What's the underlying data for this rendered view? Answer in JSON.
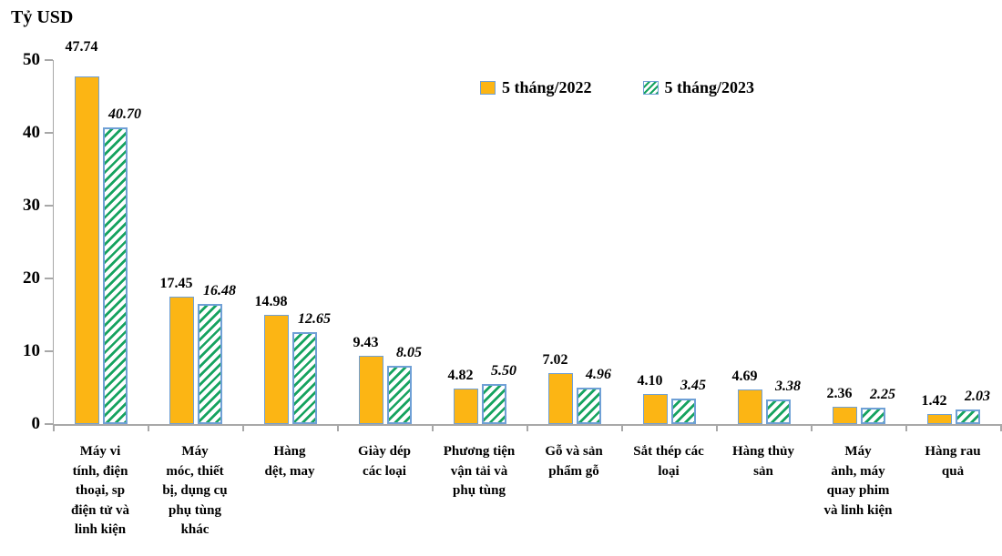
{
  "chart_data": {
    "type": "bar",
    "title": "",
    "ylabel": "Tỷ USD",
    "xlabel": "",
    "ylim": [
      0,
      50
    ],
    "yticks": [
      0,
      10,
      20,
      30,
      40,
      50
    ],
    "grid": false,
    "legend_position": "top-center",
    "axis_color": "#A8A8A8",
    "bar_border_color": "#6FA0D6",
    "categories": [
      "Máy vi tính, điện thoại, sp điện tử và linh kiện",
      "Máy móc, thiết bị, dụng cụ phụ tùng khác",
      "Hàng dệt, may",
      "Giày dép các loại",
      "Phương tiện vận tải và phụ tùng",
      "Gỗ và sản phẩm gỗ",
      "Sắt thép các loại",
      "Hàng thủy sản",
      "Máy ảnh, máy quay phim và linh kiện",
      "Hàng rau quả"
    ],
    "series": [
      {
        "name": "5 tháng/2022",
        "color": "#FCB514",
        "pattern": "solid",
        "value_label_style": "bold",
        "values": [
          47.74,
          17.45,
          14.98,
          9.43,
          4.82,
          7.02,
          4.1,
          4.69,
          2.36,
          1.42
        ]
      },
      {
        "name": "5 tháng/2023",
        "color": "#16A35F",
        "pattern": "diagonal-hatch",
        "value_label_style": "bold-italic",
        "values": [
          40.7,
          16.48,
          12.65,
          8.05,
          5.5,
          4.96,
          3.45,
          3.38,
          2.25,
          2.03
        ]
      }
    ],
    "value_labels_shown": true,
    "value_label_decimals": 2
  }
}
